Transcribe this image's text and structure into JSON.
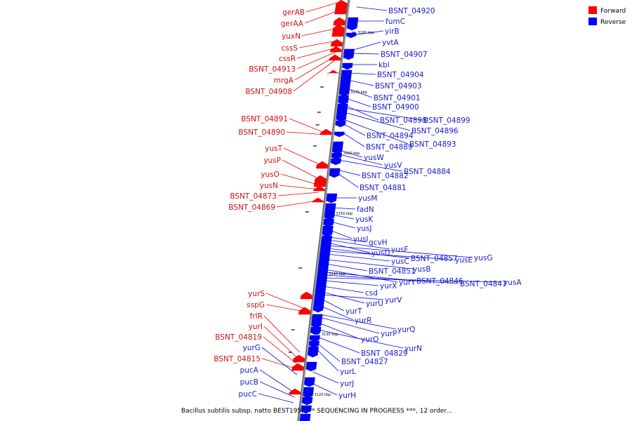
{
  "caption": "Bacillus subtilis subsp. natto BEST195, *** SEQUENCING IN PROGRESS ***, 12 order...",
  "legend": [
    {
      "label": "Forward",
      "color": "#ff0000"
    },
    {
      "label": "Reverse",
      "color": "#0000ff"
    }
  ],
  "ticks": [
    {
      "label": "3180 kbp",
      "kbp": 3180
    },
    {
      "label": "3170 kbp",
      "kbp": 3170
    },
    {
      "label": "3160 kbp",
      "kbp": 3160
    },
    {
      "label": "3150 kbp",
      "kbp": 3150
    },
    {
      "label": "3140 kbp",
      "kbp": 3140
    },
    {
      "label": "3130 kbp",
      "kbp": 3130
    },
    {
      "label": "3120 kbp",
      "kbp": 3120
    }
  ],
  "forward_genes": [
    "gerAB",
    "gerAA",
    "yuxN",
    "cssS",
    "cssR",
    "BSNT_04913",
    "mrgA",
    "BSNT_04908",
    "BSNT_04891",
    "BSNT_04890",
    "yusT",
    "yusP",
    "yusO",
    "yusN",
    "BSNT_04873",
    "BSNT_04869",
    "yurS",
    "sspG",
    "frlR",
    "yurI",
    "BSNT_04819",
    "BSNT_04815"
  ],
  "forward_other_labels": [
    "yurG",
    "pucA",
    "pucB",
    "pucC"
  ],
  "reverse_genes": [
    "BSNT_04920",
    "fumC",
    "yirB",
    "yvtA",
    "BSNT_04907",
    "kbl",
    "BSNT_04904",
    "BSNT_04903",
    "BSNT_04901",
    "BSNT_04900",
    "BSNT_04898",
    "BSNT_04899",
    "BSNT_04896",
    "BSNT_04894",
    "BSNT_04889",
    "BSNT_04893",
    "yusW",
    "yusV",
    "BSNT_04884",
    "BSNT_04882",
    "BSNT_04881",
    "yusM",
    "fadN",
    "yusK",
    "yusJ",
    "yusI",
    "gcvH",
    "yusF",
    "yusD",
    "yusG",
    "BSNT_04857",
    "yusE",
    "yusC",
    "yusB",
    "BSNT_04851",
    "yurY",
    "BSNT_04846",
    "BSNT_04847",
    "yusA",
    "yurX",
    "csd",
    "yurU",
    "yurV",
    "yurT",
    "yurR",
    "yurQ",
    "yurP",
    "yurO",
    "yurN",
    "BSNT_04829",
    "BSNT_04827",
    "yurL",
    "yurJ",
    "yurH"
  ]
}
